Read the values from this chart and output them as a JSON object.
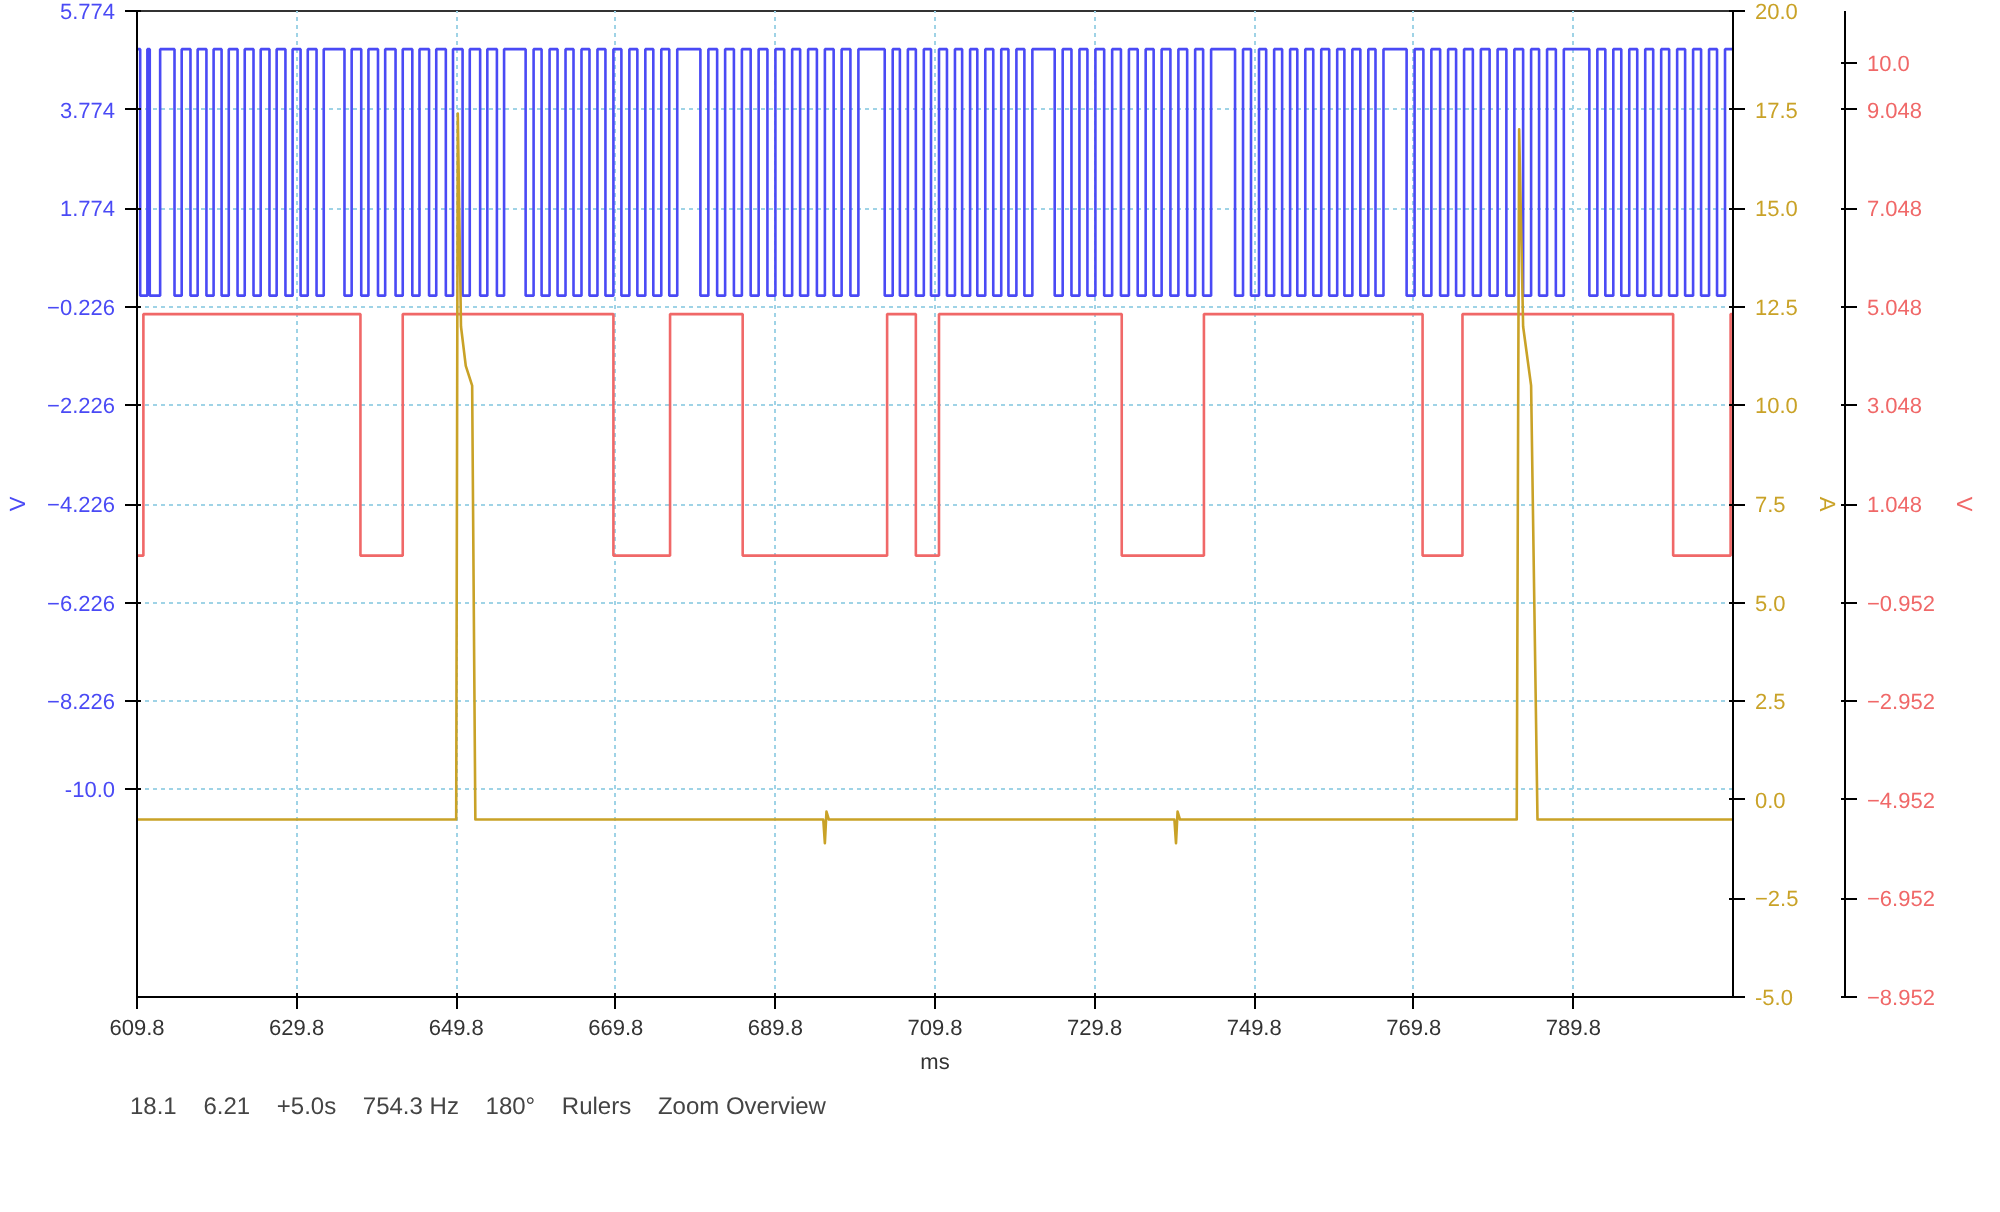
{
  "chart_data": {
    "type": "line",
    "xlabel": "ms",
    "ylabel": "V",
    "y2label": "A",
    "y3label": "V",
    "xlim": [
      609.8,
      809.8
    ],
    "xticks": [
      609.8,
      629.8,
      649.8,
      669.8,
      689.8,
      709.8,
      729.8,
      749.8,
      769.8,
      789.8
    ],
    "ylim": [
      -14.226,
      5.774
    ],
    "yticks": [
      5.774,
      3.774,
      1.774,
      -0.226,
      -2.226,
      -4.226,
      -6.226,
      -8.226,
      {
        "value": -10.0,
        "label": "-10.0"
      }
    ],
    "y2lim": [
      -5,
      20
    ],
    "y2ticks": [
      {
        "value": 20,
        "label": "20.0"
      },
      17.5,
      {
        "value": 15,
        "label": "15.0"
      },
      12.5,
      {
        "value": 10,
        "label": "10.0"
      },
      7.5,
      {
        "value": 5,
        "label": "5.0"
      },
      2.5,
      {
        "value": 0,
        "label": "0.0"
      },
      -2.5,
      {
        "value": -5,
        "label": "-5.0"
      }
    ],
    "y3lim": [
      -8.952,
      11.048
    ],
    "y3ticks": [
      {
        "value": 10,
        "label": "10.0"
      },
      9.048,
      7.048,
      5.048,
      3.048,
      1.048,
      -0.952,
      -2.952,
      -4.952,
      -6.952,
      -8.952
    ],
    "grid": true,
    "line_style": "solid",
    "series": [
      {
        "type": "step",
        "color": "#4a4af5",
        "axis": "y",
        "x": [
          609.8,
          610.2,
          611.1,
          611.4,
          612.7,
          614.5,
          615.4,
          616.5,
          617.4,
          618.5,
          619.4,
          620.4,
          621.3,
          622.4,
          623.3,
          624.4,
          625.3,
          626.4,
          627.3,
          628.4,
          629.3,
          630.3,
          631.2,
          632.3,
          633.2,
          635.8,
          636.7,
          637.9,
          638.8,
          640.0,
          640.9,
          642.2,
          643.1,
          644.3,
          645.2,
          646.4,
          647.3,
          648.5,
          649.4,
          650.6,
          651.5,
          652.8,
          653.7,
          654.9,
          655.8,
          658.5,
          659.5,
          660.5,
          661.5,
          662.5,
          663.5,
          664.5,
          665.5,
          666.5,
          667.5,
          668.5,
          669.5,
          670.5,
          671.5,
          672.5,
          673.5,
          674.5,
          675.5,
          676.5,
          677.5,
          680.4,
          681.4,
          682.5,
          683.5,
          684.6,
          685.6,
          686.7,
          687.7,
          688.8,
          689.8,
          690.9,
          691.9,
          692.9,
          693.9,
          695.0,
          696.0,
          697.1,
          698.1,
          699.2,
          700.2,
          703.5,
          704.5,
          705.4,
          706.4,
          707.4,
          708.4,
          709.3,
          710.3,
          711.3,
          712.3,
          713.2,
          714.2,
          715.1,
          716.1,
          717.1,
          718.1,
          719.0,
          720.0,
          721.0,
          722.0,
          724.8,
          725.8,
          726.9,
          727.9,
          728.9,
          729.9,
          731.0,
          732.0,
          733.1,
          734.1,
          735.2,
          736.2,
          737.2,
          738.2,
          739.3,
          740.3,
          741.4,
          742.4,
          743.4,
          744.4,
          747.4,
          748.4,
          749.4,
          750.4,
          751.3,
          752.3,
          753.3,
          754.3,
          755.2,
          756.2,
          757.2,
          758.2,
          759.2,
          760.2,
          761.1,
          762.1,
          763.1,
          764.1,
          765.0,
          766.0,
          768.9,
          769.9,
          771.0,
          772.0,
          773.1,
          774.1,
          775.1,
          776.1,
          777.2,
          778.2,
          779.3,
          780.3,
          781.4,
          782.4,
          783.5,
          784.5,
          785.5,
          786.5,
          787.6,
          788.6,
          791.8,
          792.8,
          793.8,
          794.8,
          795.8,
          796.8,
          797.8,
          798.8,
          799.8,
          800.8,
          801.8,
          802.8,
          803.8,
          804.8,
          805.8,
          806.8,
          807.8,
          808.8,
          809.8
        ],
        "values": [
          5.0,
          0.0,
          5.0,
          0.0,
          5.0,
          0.0,
          5.0,
          0.0,
          5.0,
          0.0,
          5.0,
          0.0,
          5.0,
          0.0,
          5.0,
          0.0,
          5.0,
          0.0,
          5.0,
          0.0,
          5.0,
          0.0,
          5.0,
          0.0,
          5.0,
          0.0,
          5.0,
          0.0,
          5.0,
          0.0,
          5.0,
          0.0,
          5.0,
          0.0,
          5.0,
          0.0,
          5.0,
          0.0,
          5.0,
          0.0,
          5.0,
          0.0,
          5.0,
          0.0,
          5.0,
          0.0,
          5.0,
          0.0,
          5.0,
          0.0,
          5.0,
          0.0,
          5.0,
          0.0,
          5.0,
          0.0,
          5.0,
          0.0,
          5.0,
          0.0,
          5.0,
          0.0,
          5.0,
          0.0,
          5.0,
          0.0,
          5.0,
          0.0,
          5.0,
          0.0,
          5.0,
          0.0,
          5.0,
          0.0,
          5.0,
          0.0,
          5.0,
          0.0,
          5.0,
          0.0,
          5.0,
          0.0,
          5.0,
          0.0,
          5.0,
          0.0,
          5.0,
          0.0,
          5.0,
          0.0,
          5.0,
          0.0,
          5.0,
          0.0,
          5.0,
          0.0,
          5.0,
          0.0,
          5.0,
          0.0,
          5.0,
          0.0,
          5.0,
          0.0,
          5.0,
          0.0,
          5.0,
          0.0,
          5.0,
          0.0,
          5.0,
          0.0,
          5.0,
          0.0,
          5.0,
          0.0,
          5.0,
          0.0,
          5.0,
          0.0,
          5.0,
          0.0,
          5.0,
          0.0,
          5.0,
          0.0,
          5.0,
          0.0,
          5.0,
          0.0,
          5.0,
          0.0,
          5.0,
          0.0,
          5.0,
          0.0,
          5.0,
          0.0,
          5.0,
          0.0,
          5.0,
          0.0,
          5.0,
          0.0,
          5.0,
          0.0,
          5.0,
          0.0,
          5.0,
          0.0,
          5.0,
          0.0,
          5.0,
          0.0,
          5.0,
          0.0,
          5.0,
          0.0,
          5.0,
          0.0,
          5.0,
          0.0,
          5.0,
          0.0,
          5.0,
          0.0,
          5.0,
          0.0,
          5.0,
          0.0,
          5.0,
          0.0,
          5.0,
          0.0,
          5.0,
          0.0,
          5.0,
          0.0,
          5.0,
          0.0,
          5.0,
          0.0,
          5.0,
          5.0
        ]
      },
      {
        "type": "step",
        "color": "#f06868",
        "axis": "y3",
        "x": [
          609.8,
          610.6,
          637.8,
          643.1,
          669.5,
          676.6,
          685.7,
          703.8,
          707.4,
          710.3,
          733.2,
          743.5,
          770.9,
          775.9,
          802.3,
          809.5,
          809.8
        ],
        "values": [
          0.0,
          4.9,
          0.0,
          4.9,
          0.0,
          4.9,
          0.0,
          4.9,
          0.0,
          4.9,
          0.0,
          4.9,
          0.0,
          4.9,
          0.0,
          4.9,
          4.9
        ]
      },
      {
        "color": "#c9a227",
        "axis": "y2",
        "x": [
          609.8,
          649.8,
          650.0,
          650.4,
          651.0,
          651.8,
          652.2,
          695.8,
          696.0,
          696.2,
          696.5,
          739.8,
          740.0,
          740.2,
          740.5,
          782.7,
          783.0,
          783.5,
          784.5,
          785.3,
          809.8
        ],
        "values": [
          -0.5,
          -0.5,
          17.4,
          12.0,
          11.0,
          10.5,
          -0.5,
          -0.5,
          -1.1,
          -0.3,
          -0.5,
          -0.5,
          -1.1,
          -0.3,
          -0.5,
          -0.5,
          17.0,
          12.0,
          10.5,
          -0.5,
          -0.5
        ]
      }
    ],
    "annotations": [
      "18.1",
      "6.21",
      "+5.0s",
      "754.3 Hz",
      "180°",
      "Rulers",
      "Zoom Overview"
    ]
  }
}
